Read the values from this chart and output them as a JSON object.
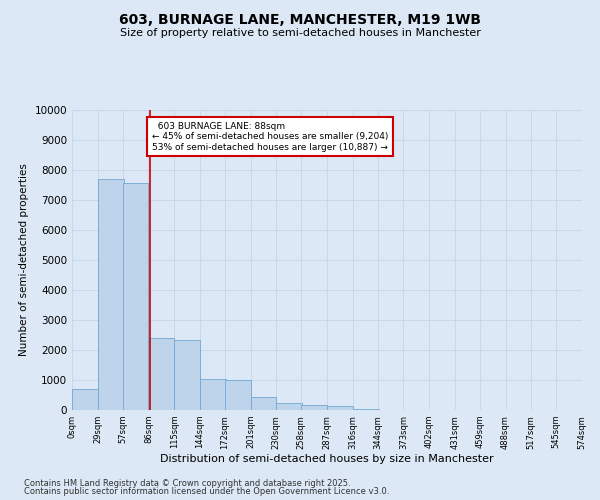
{
  "title": "603, BURNAGE LANE, MANCHESTER, M19 1WB",
  "subtitle": "Size of property relative to semi-detached houses in Manchester",
  "xlabel": "Distribution of semi-detached houses by size in Manchester",
  "ylabel": "Number of semi-detached properties",
  "footer1": "Contains HM Land Registry data © Crown copyright and database right 2025.",
  "footer2": "Contains public sector information licensed under the Open Government Licence v3.0.",
  "property_label": "603 BURNAGE LANE: 88sqm",
  "pct_smaller": 45,
  "pct_larger": 53,
  "count_smaller": 9204,
  "count_larger": 10887,
  "bin_labels": [
    "0sqm",
    "29sqm",
    "57sqm",
    "86sqm",
    "115sqm",
    "144sqm",
    "172sqm",
    "201sqm",
    "230sqm",
    "258sqm",
    "287sqm",
    "316sqm",
    "344sqm",
    "373sqm",
    "402sqm",
    "431sqm",
    "459sqm",
    "488sqm",
    "517sqm",
    "545sqm",
    "574sqm"
  ],
  "bin_edges": [
    0,
    29,
    57,
    86,
    115,
    144,
    172,
    201,
    230,
    258,
    287,
    316,
    344,
    373,
    402,
    431,
    459,
    488,
    517,
    545,
    574
  ],
  "bar_heights": [
    700,
    7700,
    7550,
    2400,
    2350,
    1050,
    1000,
    450,
    250,
    170,
    120,
    50,
    10,
    5,
    2,
    1,
    0,
    0,
    0,
    0
  ],
  "bar_color": "#bdd4ea",
  "bar_edgecolor": "#6fa8d4",
  "vline_x": 88,
  "vline_color": "#cc0000",
  "annotation_box_color": "#cc0000",
  "ylim": [
    0,
    10000
  ],
  "yticks": [
    0,
    1000,
    2000,
    3000,
    4000,
    5000,
    6000,
    7000,
    8000,
    9000,
    10000
  ],
  "grid_color": "#c8d8ec",
  "background_color": "#dce8f5"
}
